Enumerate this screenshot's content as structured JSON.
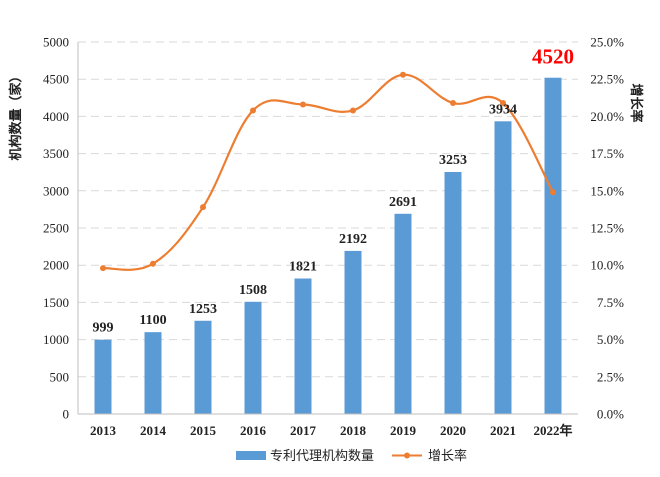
{
  "chart_data": {
    "type": "bar+line",
    "categories": [
      "2013",
      "2014",
      "2015",
      "2016",
      "2017",
      "2018",
      "2019",
      "2020",
      "2021",
      "2022年"
    ],
    "series": [
      {
        "name": "专利代理机构数量",
        "type": "bar",
        "axis": "left",
        "values": [
          999,
          1100,
          1253,
          1508,
          1821,
          2192,
          2691,
          3253,
          3934,
          4520
        ],
        "labels": [
          "999",
          "1100",
          "1253",
          "1508",
          "1821",
          "2192",
          "2691",
          "3253",
          "3934",
          "4520"
        ],
        "color": "#5b9bd5"
      },
      {
        "name": "增长率",
        "type": "line",
        "axis": "right",
        "values": [
          9.8,
          10.1,
          13.9,
          20.4,
          20.8,
          20.4,
          22.8,
          20.9,
          20.9,
          14.9
        ],
        "color": "#ed7d31"
      }
    ],
    "highlight": {
      "index": 9,
      "color": "#ff0000"
    },
    "ylabel_left": "机构数量（家）",
    "ylabel_right": "增长率",
    "ylim_left": [
      0,
      5000
    ],
    "yticks_left": [
      "0",
      "500",
      "1000",
      "1500",
      "2000",
      "2500",
      "3000",
      "3500",
      "4000",
      "4500",
      "5000"
    ],
    "ylim_right": [
      0,
      25
    ],
    "yticks_right": [
      "0.0%",
      "2.5%",
      "5.0%",
      "7.5%",
      "10.0%",
      "12.5%",
      "15.0%",
      "17.5%",
      "20.0%",
      "22.5%",
      "25.0%"
    ],
    "grid": true,
    "legend_position": "bottom-center"
  }
}
